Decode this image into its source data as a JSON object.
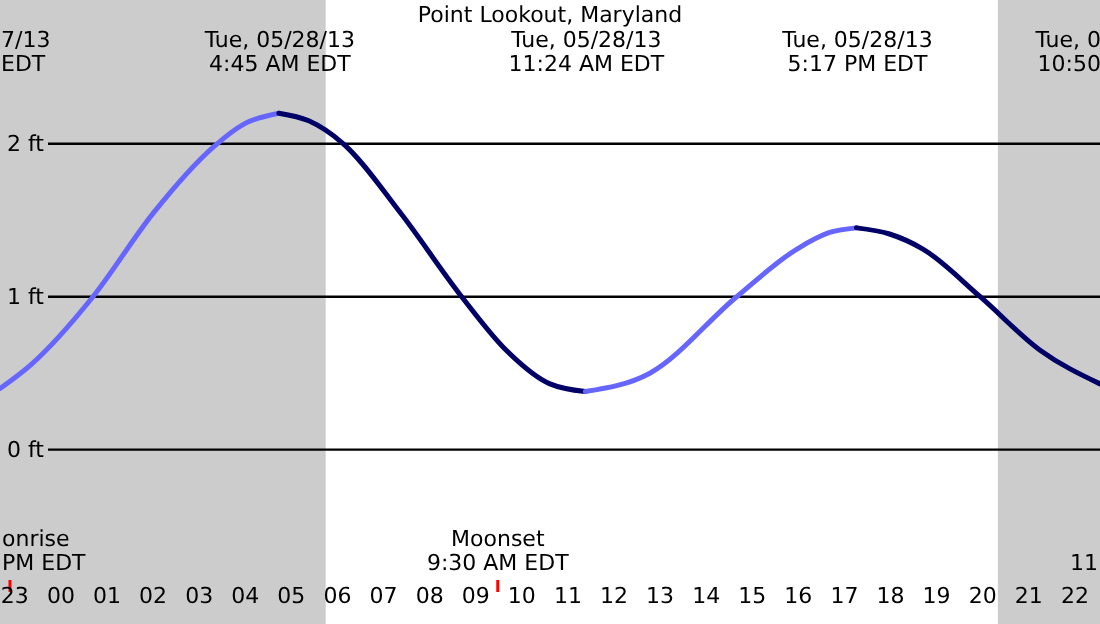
{
  "chart_data": {
    "type": "line",
    "title": "Point Lookout, Maryland",
    "xlim": [
      "--05-27T22:42",
      "--05-28T22:34"
    ],
    "ylim": [
      -1.14,
      2.94
    ],
    "xticks": [
      {
        "value": "--05-27T23:00",
        "label": "23"
      },
      {
        "value": "--05-28T00:00",
        "label": "00"
      },
      {
        "value": "--05-28T01:00",
        "label": "01"
      },
      {
        "value": "--05-28T02:00",
        "label": "02"
      },
      {
        "value": "--05-28T03:00",
        "label": "03"
      },
      {
        "value": "--05-28T04:00",
        "label": "04"
      },
      {
        "value": "--05-28T05:00",
        "label": "05"
      },
      {
        "value": "--05-28T06:00",
        "label": "06"
      },
      {
        "value": "--05-28T07:00",
        "label": "07"
      },
      {
        "value": "--05-28T08:00",
        "label": "08"
      },
      {
        "value": "--05-28T09:00",
        "label": "09"
      },
      {
        "value": "--05-28T10:00",
        "label": "10"
      },
      {
        "value": "--05-28T11:00",
        "label": "11"
      },
      {
        "value": "--05-28T12:00",
        "label": "12"
      },
      {
        "value": "--05-28T13:00",
        "label": "13"
      },
      {
        "value": "--05-28T14:00",
        "label": "14"
      },
      {
        "value": "--05-28T15:00",
        "label": "15"
      },
      {
        "value": "--05-28T16:00",
        "label": "16"
      },
      {
        "value": "--05-28T17:00",
        "label": "17"
      },
      {
        "value": "--05-28T18:00",
        "label": "18"
      },
      {
        "value": "--05-28T19:00",
        "label": "19"
      },
      {
        "value": "--05-28T20:00",
        "label": "20"
      },
      {
        "value": "--05-28T21:00",
        "label": "21"
      },
      {
        "value": "--05-28T22:00",
        "label": "22"
      }
    ],
    "x2lim": [
      "--05-27T22:42",
      "--05-28T22:34"
    ],
    "x2ticks": [
      {
        "value": "--05-27T22:42",
        "label": "7/13\nEDT"
      },
      {
        "value": "--05-28T04:45",
        "label": "Tue, 05/28/13\n4:45 AM EDT"
      },
      {
        "value": "--05-28T11:24",
        "label": "Tue, 05/28/13\n11:24 AM EDT"
      },
      {
        "value": "--05-28T17:17",
        "label": "Tue, 05/28/13\n5:17 PM EDT"
      },
      {
        "value": "--05-28T22:34",
        "label": "Tue, 0\n10:50"
      }
    ],
    "yticks": [
      {
        "value": 0,
        "label": "0 ft"
      },
      {
        "value": 1,
        "label": "1 ft"
      },
      {
        "value": 2,
        "label": "2 ft"
      }
    ],
    "grid": "y",
    "bands": [
      {
        "axis": "x",
        "from": "--05-27T22:42",
        "to": "--05-28T05:46",
        "color": "#cccccc"
      },
      {
        "axis": "x",
        "from": "--05-28T20:21",
        "to": "--05-28T22:34",
        "color": "#cccccc"
      }
    ],
    "ref_lines": [
      {
        "axis": "x",
        "value": "--05-27T22:55",
        "label": "onrise\nPM EDT",
        "color": "#ff0000"
      },
      {
        "axis": "x",
        "value": "--05-28T09:30",
        "label": "Moonset\n9:30 AM EDT",
        "color": "#ff0000"
      }
    ],
    "series": [
      {
        "color": "#6666ff",
        "x": [
          "--05-27T22:42",
          "--05-27T23:21",
          "--05-28T00:43",
          "--05-28T02:02",
          "--05-28T03:20",
          "--05-28T04:00",
          "--05-28T04:45"
        ],
        "values": [
          0.4,
          0.55,
          1.0,
          1.55,
          1.98,
          2.13,
          2.2
        ]
      },
      {
        "color": "#000066",
        "x": [
          "--05-28T04:45",
          "--05-28T05:24",
          "--05-28T06:09",
          "--05-28T07:23",
          "--05-28T08:43",
          "--05-28T09:41",
          "--05-28T10:38",
          "--05-28T11:24"
        ],
        "values": [
          2.2,
          2.15,
          2.0,
          1.55,
          1.0,
          0.65,
          0.43,
          0.38
        ]
      },
      {
        "color": "#6666ff",
        "x": [
          "--05-28T11:24",
          "--05-28T12:48",
          "--05-28T14:41",
          "--05-28T15:59",
          "--05-28T16:42",
          "--05-28T17:17"
        ],
        "values": [
          0.38,
          0.5,
          1.0,
          1.31,
          1.42,
          1.45
        ]
      },
      {
        "color": "#000066",
        "x": [
          "--05-28T17:17",
          "--05-28T18:00",
          "--05-28T18:44",
          "--05-28T19:58",
          "--05-28T21:16",
          "--05-28T22:34"
        ],
        "values": [
          1.45,
          1.41,
          1.31,
          1.0,
          0.65,
          0.43
        ]
      }
    ],
    "annotations": [
      "11"
    ]
  }
}
